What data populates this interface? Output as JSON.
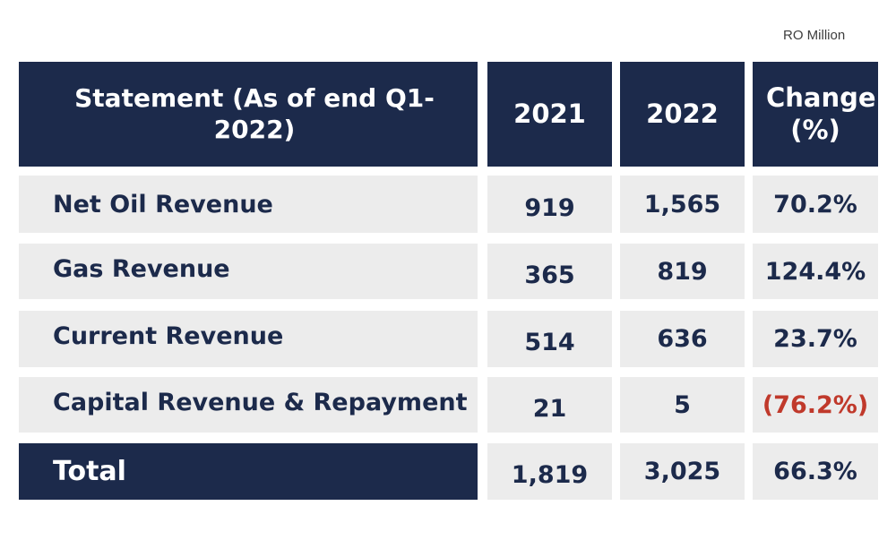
{
  "unit_label": "RO Million",
  "table": {
    "headers": {
      "statement": "Statement (As of end Q1- 2022)",
      "year_2021": "2021",
      "year_2022": "2022",
      "change": "Change (%)"
    },
    "rows": [
      {
        "label": "Net Oil Revenue",
        "v2021": "919",
        "v2022": "1,565",
        "change": "70.2%"
      },
      {
        "label": "Gas Revenue",
        "v2021": "365",
        "v2022": "819",
        "change": "124.4%"
      },
      {
        "label": "Current Revenue",
        "v2021": "514",
        "v2022": "636",
        "change": "23.7%"
      },
      {
        "label": "Capital Revenue & Repayment",
        "v2021": "21",
        "v2022": "5",
        "change": "(76.2%)"
      }
    ],
    "total": {
      "label": "Total",
      "v2021": "1,819",
      "v2022": "3,025",
      "change": "66.3%"
    }
  },
  "colors": {
    "header_bg": "#1c2a4b",
    "row_bg": "#ececec",
    "negative": "#c0392b"
  }
}
